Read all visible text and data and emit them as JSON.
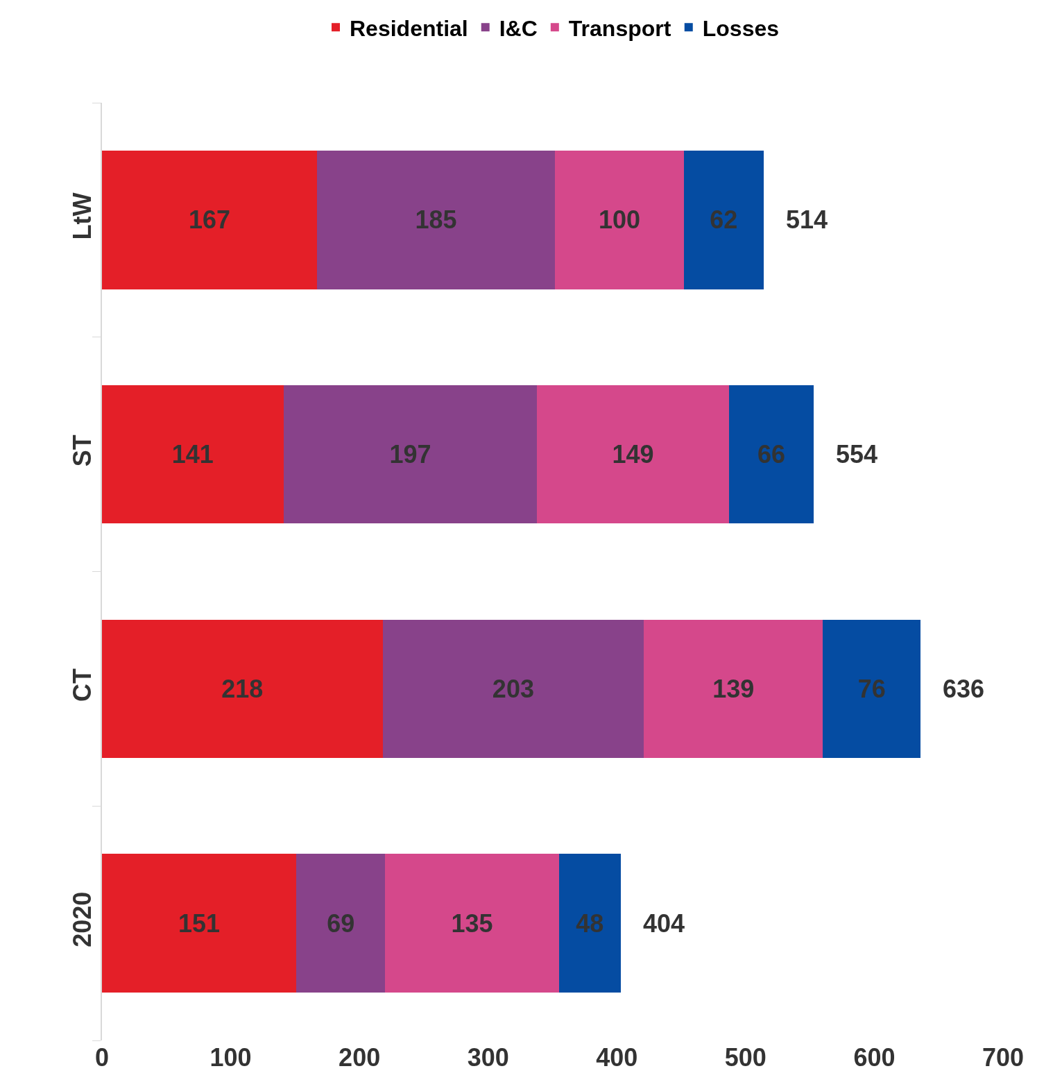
{
  "chart_data": {
    "type": "bar",
    "orientation": "horizontal",
    "stacked": true,
    "categories": [
      "LtW",
      "ST",
      "CT",
      "2020"
    ],
    "series": [
      {
        "name": "Residential",
        "color": "#e41f28",
        "values": [
          167,
          141,
          218,
          151
        ]
      },
      {
        "name": "I&C",
        "color": "#88428a",
        "values": [
          185,
          197,
          203,
          69
        ]
      },
      {
        "name": "Transport",
        "color": "#d5488b",
        "values": [
          100,
          149,
          139,
          135
        ]
      },
      {
        "name": "Losses",
        "color": "#054ca2",
        "values": [
          62,
          66,
          76,
          48
        ]
      }
    ],
    "data_labels": true,
    "totals": [
      "514",
      "554",
      "636",
      "404"
    ],
    "xlim": [
      0,
      700
    ],
    "xticks": [
      0,
      100,
      200,
      300,
      400,
      500,
      600,
      700
    ],
    "legend": "top"
  }
}
